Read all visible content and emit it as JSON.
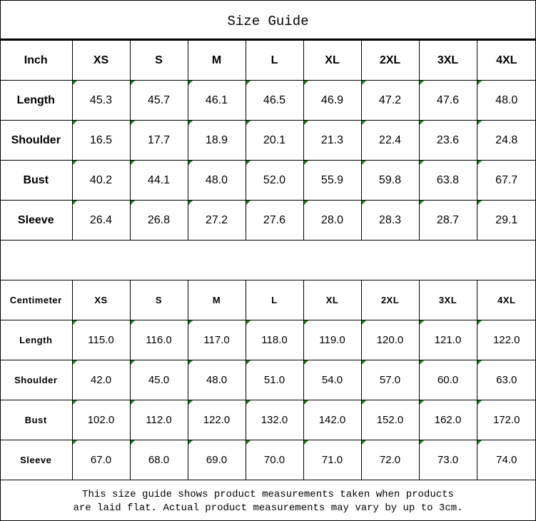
{
  "title": "Size Guide",
  "accent_indicator_color": "#1a7f1a",
  "inch_table": {
    "header": [
      "Inch",
      "XS",
      "S",
      "M",
      "L",
      "XL",
      "2XL",
      "3XL",
      "4XL"
    ],
    "rows": [
      {
        "label": "Length",
        "values": [
          "45.3",
          "45.7",
          "46.1",
          "46.5",
          "46.9",
          "47.2",
          "47.6",
          "48.0"
        ]
      },
      {
        "label": "Shoulder",
        "values": [
          "16.5",
          "17.7",
          "18.9",
          "20.1",
          "21.3",
          "22.4",
          "23.6",
          "24.8"
        ]
      },
      {
        "label": "Bust",
        "values": [
          "40.2",
          "44.1",
          "48.0",
          "52.0",
          "55.9",
          "59.8",
          "63.8",
          "67.7"
        ]
      },
      {
        "label": "Sleeve",
        "values": [
          "26.4",
          "26.8",
          "27.2",
          "27.6",
          "28.0",
          "28.3",
          "28.7",
          "29.1"
        ]
      }
    ]
  },
  "cm_table": {
    "header": [
      "Centimeter",
      "XS",
      "S",
      "M",
      "L",
      "XL",
      "2XL",
      "3XL",
      "4XL"
    ],
    "rows": [
      {
        "label": "Length",
        "values": [
          "115.0",
          "116.0",
          "117.0",
          "118.0",
          "119.0",
          "120.0",
          "121.0",
          "122.0"
        ]
      },
      {
        "label": "Shoulder",
        "values": [
          "42.0",
          "45.0",
          "48.0",
          "51.0",
          "54.0",
          "57.0",
          "60.0",
          "63.0"
        ]
      },
      {
        "label": "Bust",
        "values": [
          "102.0",
          "112.0",
          "122.0",
          "132.0",
          "142.0",
          "152.0",
          "162.0",
          "172.0"
        ]
      },
      {
        "label": "Sleeve",
        "values": [
          "67.0",
          "68.0",
          "69.0",
          "70.0",
          "71.0",
          "72.0",
          "73.0",
          "74.0"
        ]
      }
    ]
  },
  "footer": {
    "line1": "This size guide shows product measurements taken when products",
    "line2": "are laid flat. Actual product measurements may vary by up to 3cm."
  }
}
